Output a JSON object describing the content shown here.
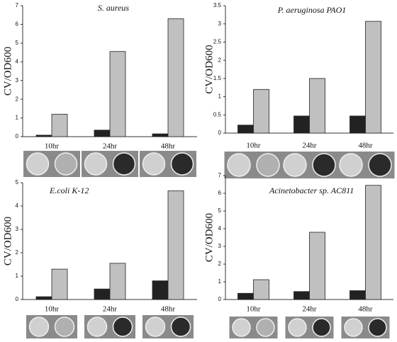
{
  "chart_data": [
    {
      "type": "bar",
      "title": "S. aureus",
      "y_label": "CV/OD600",
      "categories": [
        "10hr",
        "24hr",
        "48hr"
      ],
      "series": [
        {
          "color": "#222222",
          "values": [
            0.08,
            0.35,
            0.15
          ]
        },
        {
          "color": "#c0c0c0",
          "values": [
            1.2,
            4.55,
            6.3
          ]
        }
      ],
      "ylim": [
        0,
        7
      ],
      "yticks": [
        0,
        1,
        2,
        3,
        4,
        5,
        6,
        7
      ]
    },
    {
      "type": "bar",
      "title": "P. aeruginosa PAO1",
      "y_label": "CV/OD600",
      "categories": [
        "10hr",
        "24hr",
        "48hr"
      ],
      "series": [
        {
          "color": "#222222",
          "values": [
            0.22,
            0.47,
            0.47
          ]
        },
        {
          "color": "#c0c0c0",
          "values": [
            1.2,
            1.5,
            3.07
          ]
        }
      ],
      "ylim": [
        0,
        3.5
      ],
      "yticks": [
        0,
        0.5,
        1,
        1.5,
        2,
        2.5,
        3,
        3.5
      ]
    },
    {
      "type": "bar",
      "title": "E.coli K-12",
      "y_label": "CV/OD600",
      "categories": [
        "10hr",
        "24hr",
        "48hr"
      ],
      "series": [
        {
          "color": "#222222",
          "values": [
            0.12,
            0.45,
            0.8
          ]
        },
        {
          "color": "#c0c0c0",
          "values": [
            1.3,
            1.55,
            4.65
          ]
        }
      ],
      "ylim": [
        0,
        5
      ],
      "yticks": [
        0,
        1,
        2,
        3,
        4,
        5
      ]
    },
    {
      "type": "bar",
      "title": "Acinetobacter sp. AC811",
      "y_label": "CV/OD600",
      "categories": [
        "10hr",
        "24hr",
        "48hr"
      ],
      "series": [
        {
          "color": "#222222",
          "values": [
            0.35,
            0.45,
            0.5
          ]
        },
        {
          "color": "#c0c0c0",
          "values": [
            1.12,
            3.8,
            6.45
          ]
        }
      ],
      "ylim": [
        0,
        7
      ],
      "yticks": [
        0,
        1,
        2,
        3,
        4,
        5,
        6,
        7
      ]
    }
  ]
}
